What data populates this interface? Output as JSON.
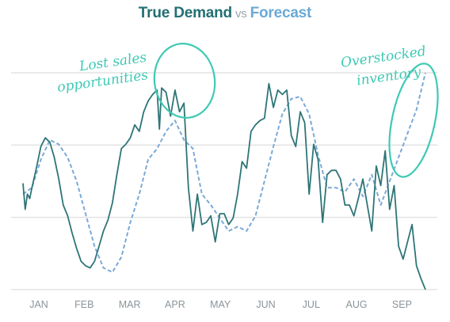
{
  "title": {
    "demand": "True Demand",
    "vs": "vs",
    "forecast": "Forecast"
  },
  "colors": {
    "demand": "#2e7577",
    "forecast": "#7ba9d6",
    "annotation": "#3ec9b4",
    "grid": "#d6d6d6",
    "ticks": "#8a949a"
  },
  "chart_data": {
    "type": "line",
    "title": "True Demand vs Forecast",
    "xlabel": "",
    "ylabel": "",
    "categories": [
      "JAN",
      "FEB",
      "MAR",
      "APR",
      "MAY",
      "JUN",
      "JUL",
      "AUG",
      "SEP"
    ],
    "xlim": [
      0,
      9
    ],
    "ylim": [
      0,
      100
    ],
    "grid": "horizontal",
    "y_ticks_labeled": false,
    "series": [
      {
        "name": "True Demand",
        "style": "solid",
        "x": [
          0.0,
          0.05,
          0.1,
          0.15,
          0.2,
          0.3,
          0.4,
          0.5,
          0.6,
          0.7,
          0.8,
          0.9,
          1.0,
          1.1,
          1.2,
          1.3,
          1.4,
          1.5,
          1.6,
          1.7,
          1.8,
          1.9,
          2.0,
          2.1,
          2.2,
          2.3,
          2.4,
          2.5,
          2.6,
          2.7,
          2.8,
          2.9,
          3.0,
          3.05,
          3.1,
          3.2,
          3.3,
          3.4,
          3.5,
          3.6,
          3.7,
          3.8,
          3.9,
          4.0,
          4.1,
          4.2,
          4.3,
          4.4,
          4.5,
          4.6,
          4.7,
          4.8,
          4.9,
          5.0,
          5.1,
          5.2,
          5.3,
          5.4,
          5.5,
          5.6,
          5.7,
          5.8,
          5.9,
          6.0,
          6.1,
          6.2,
          6.3,
          6.4,
          6.5,
          6.6,
          6.7,
          6.8,
          6.9,
          7.0,
          7.1,
          7.2,
          7.3,
          7.4,
          7.5,
          7.6,
          7.7,
          7.8,
          7.9,
          8.0,
          8.1,
          8.2,
          8.3,
          8.4,
          8.5,
          8.6,
          8.7,
          8.8,
          8.9,
          9.0
        ],
        "values": [
          49,
          37,
          44,
          42,
          47,
          56,
          66,
          70,
          68,
          61,
          51,
          39,
          34,
          26,
          19,
          13,
          11,
          10,
          13,
          20,
          27,
          32,
          40,
          53,
          65,
          67,
          70,
          76,
          73,
          82,
          87,
          90,
          92,
          74,
          93,
          91,
          80,
          92,
          82,
          86,
          47,
          27,
          44,
          30,
          31,
          34,
          22,
          35,
          35,
          30,
          33,
          44,
          59,
          56,
          73,
          76,
          78,
          79,
          95,
          84,
          92,
          90,
          92,
          71,
          66,
          82,
          77,
          44,
          67,
          60,
          31,
          53,
          55,
          55,
          51,
          39,
          39,
          34,
          42,
          51,
          39,
          27,
          57,
          48,
          64,
          37,
          48,
          20,
          14,
          22,
          30,
          11,
          5,
          0
        ]
      },
      {
        "name": "Forecast",
        "style": "dashed",
        "x": [
          0.0,
          0.2,
          0.4,
          0.6,
          0.8,
          1.0,
          1.2,
          1.4,
          1.6,
          1.8,
          2.0,
          2.2,
          2.4,
          2.6,
          2.8,
          3.0,
          3.2,
          3.4,
          3.6,
          3.8,
          4.0,
          4.2,
          4.4,
          4.6,
          4.8,
          5.0,
          5.2,
          5.4,
          5.6,
          5.8,
          6.0,
          6.2,
          6.4,
          6.6,
          6.8,
          7.0,
          7.2,
          7.4,
          7.6,
          7.8,
          8.0,
          8.2,
          8.4,
          8.6,
          8.8,
          9.0
        ],
        "values": [
          44,
          47,
          60,
          69,
          67,
          61,
          50,
          35,
          20,
          10,
          8,
          15,
          31,
          44,
          60,
          65,
          73,
          78,
          69,
          65,
          44,
          39,
          33,
          27,
          29,
          27,
          34,
          50,
          66,
          81,
          88,
          89,
          81,
          62,
          47,
          47,
          45,
          51,
          43,
          53,
          39,
          50,
          61,
          72,
          83,
          100
        ]
      }
    ],
    "annotations": [
      {
        "text": "Lost sales opportunities",
        "target": "APR peak"
      },
      {
        "text": "Overstocked inventory",
        "target": "SEP"
      }
    ]
  }
}
